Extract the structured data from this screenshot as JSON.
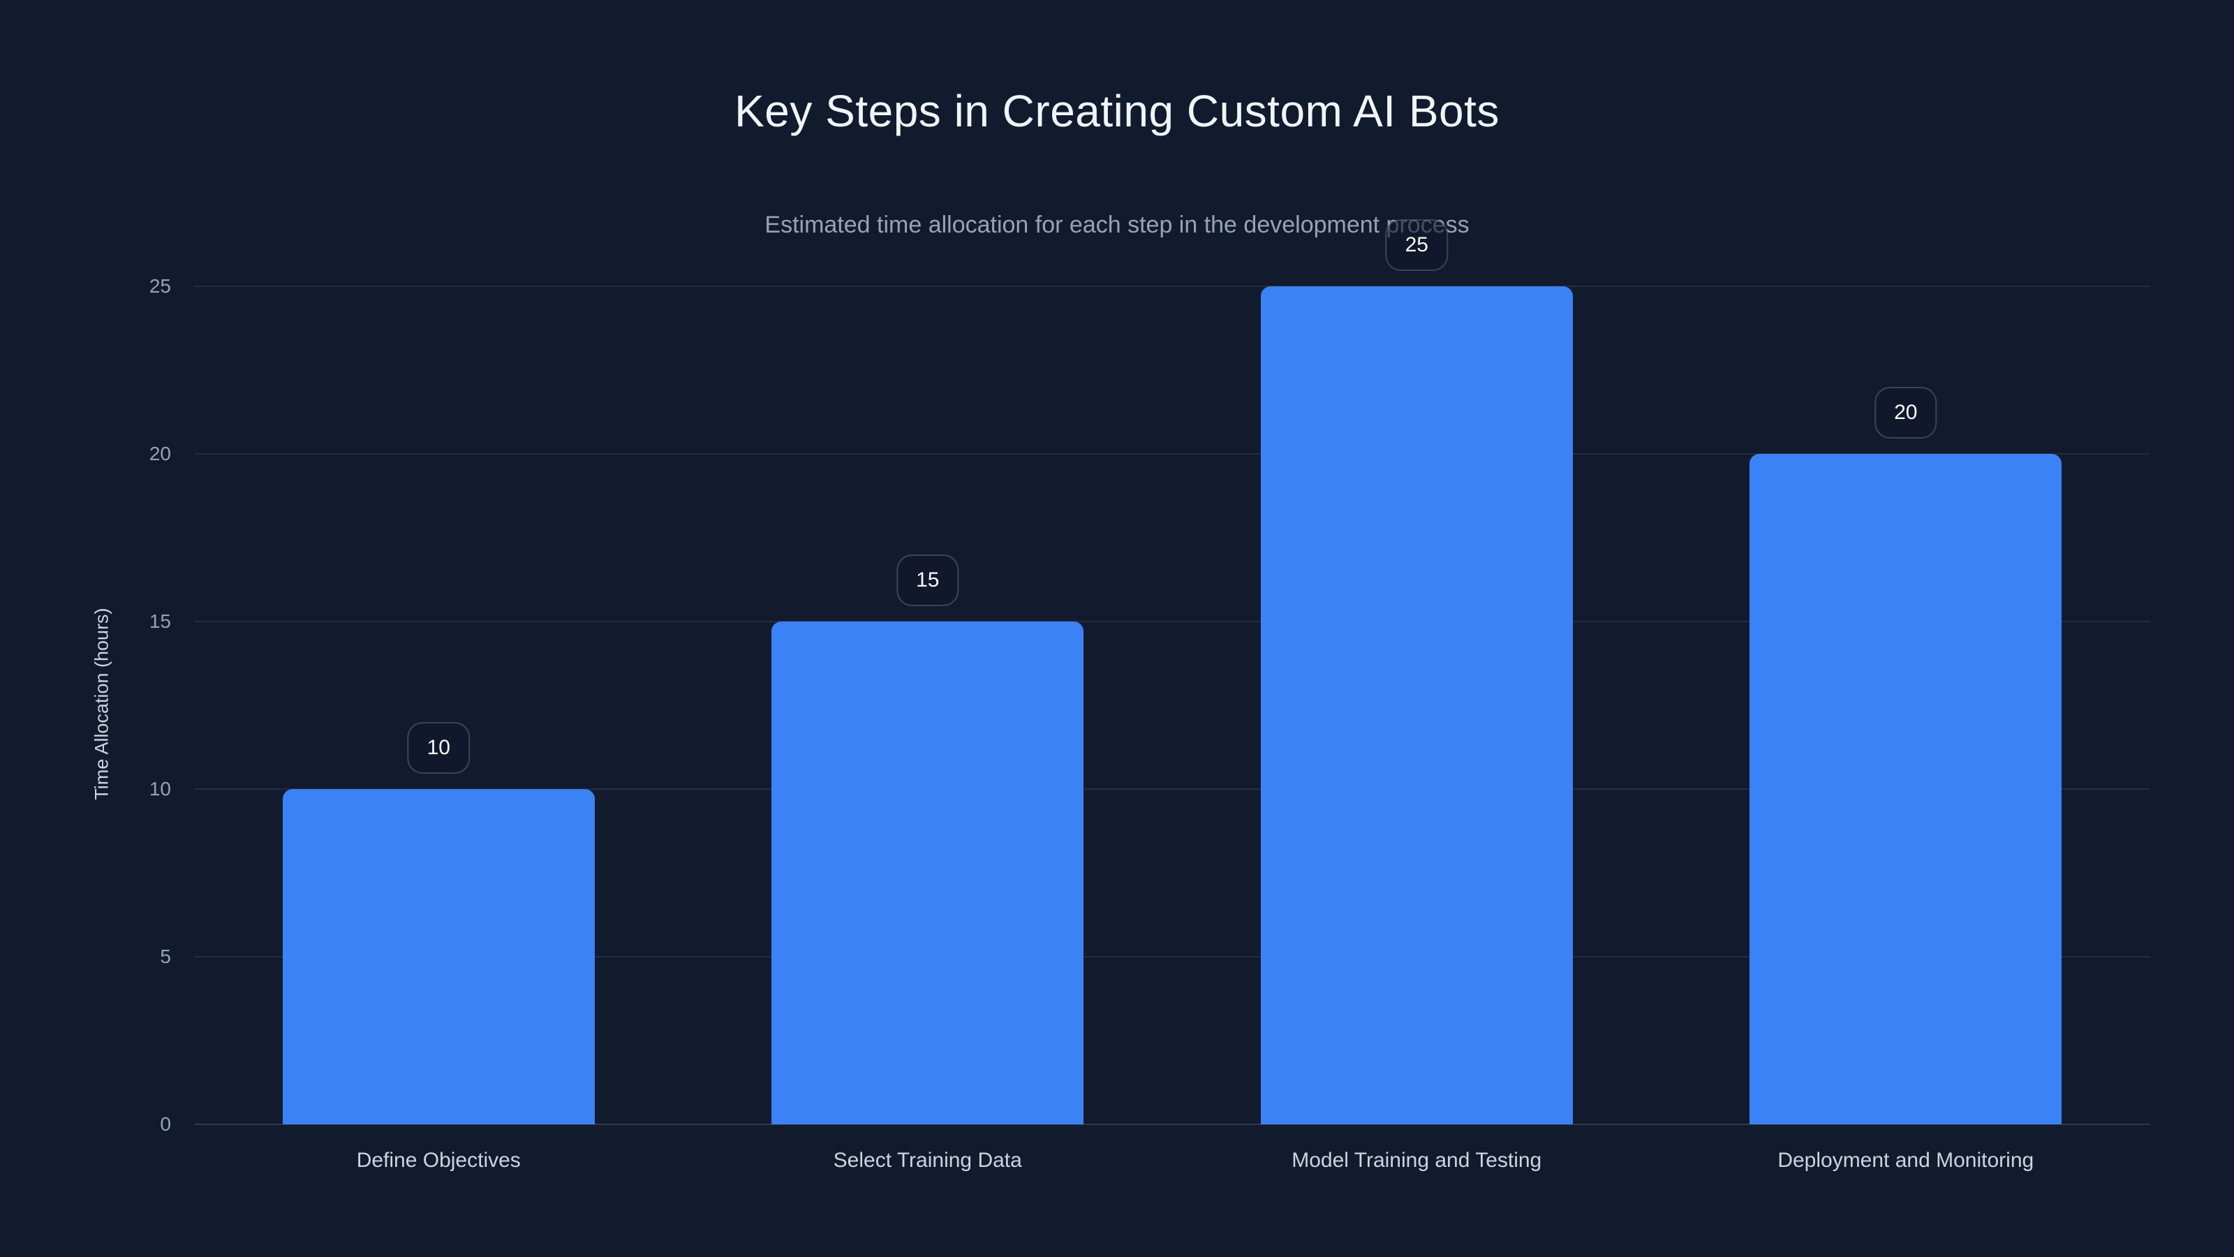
{
  "page": {
    "background_color": "#121b2e"
  },
  "chart_data": {
    "type": "bar",
    "title": "Key Steps in Creating Custom AI Bots",
    "subtitle": "Estimated time allocation for each step in the development process",
    "categories": [
      "Define Objectives",
      "Select Training Data",
      "Model Training and Testing",
      "Deployment and Monitoring"
    ],
    "values": [
      10,
      15,
      25,
      20
    ],
    "value_labels": [
      "10",
      "15",
      "25",
      "20"
    ],
    "xlabel": "",
    "ylabel": "Time Allocation (hours)",
    "yticks": [
      0,
      5,
      10,
      15,
      20,
      25
    ],
    "ylim": [
      0,
      25
    ],
    "grid": true,
    "legend": false,
    "colors": {
      "bar": "#3b82f6",
      "title_text": "#f1f5f9",
      "subtitle_text": "#94a3b8",
      "tick_text": "#94a3b8",
      "category_text": "#cbd5e1",
      "axis_title_text": "#cbd5e1",
      "badge_text": "#f8fafc",
      "badge_border": "rgba(148,163,184,0.32)",
      "badge_background": "rgba(16,24,42,0.6)",
      "gridline": "rgba(148,163,184,0.13)",
      "background": "#121b2e"
    }
  }
}
